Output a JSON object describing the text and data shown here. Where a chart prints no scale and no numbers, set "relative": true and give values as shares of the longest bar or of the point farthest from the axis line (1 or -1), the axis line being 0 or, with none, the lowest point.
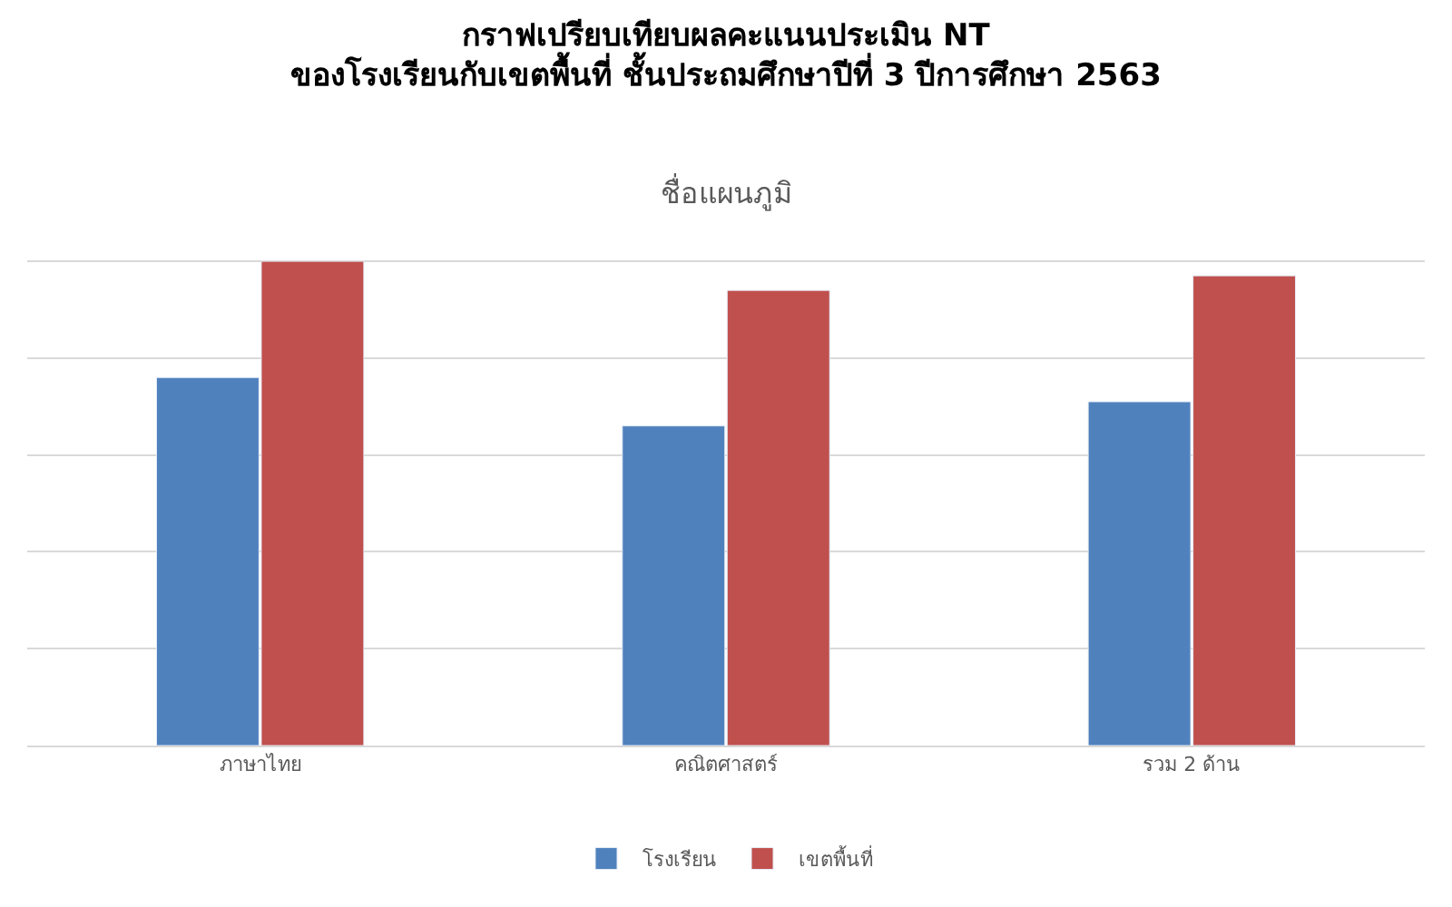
{
  "chart_data": {
    "type": "bar",
    "title": "กราฟเปรียบเทียบผลคะแนนประเมิน NT\nของโรงเรียนกับเขตพื้นที่ ชั้นประถมศึกษาปีที่ 3 ปีการศึกษา 2563",
    "subtitle": "ชื่อแผนภูมิ",
    "categories": [
      "ภาษาไทย",
      "คณิตศาสตร์",
      "รวม 2 ด้าน"
    ],
    "series": [
      {
        "name": "โรงเรียน",
        "color": "#4f81bd",
        "values": [
          0.76,
          0.66,
          0.71
        ]
      },
      {
        "name": "เขตพื้นที่",
        "color": "#c0504d",
        "values": [
          1,
          0.94,
          0.97
        ]
      }
    ],
    "relative": true,
    "grid": "y",
    "legend": "bottom"
  }
}
